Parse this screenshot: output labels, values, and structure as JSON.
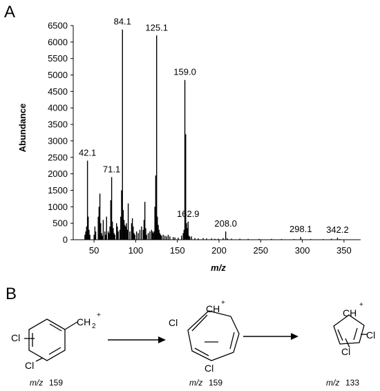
{
  "panels": {
    "a": "A",
    "b": "B"
  },
  "chart_data": {
    "type": "bar",
    "xlabel": "m/z",
    "ylabel": "Abundance",
    "xlim": [
      25,
      370
    ],
    "ylim": [
      0,
      6500
    ],
    "xticks": [
      50,
      100,
      150,
      200,
      250,
      300,
      350
    ],
    "yticks": [
      0,
      500,
      1000,
      1500,
      2000,
      2500,
      3000,
      3500,
      4000,
      4500,
      5000,
      5500,
      6000,
      6500
    ],
    "grid": false,
    "x": [
      39,
      40,
      41,
      42.1,
      43,
      44,
      45,
      50,
      51,
      52,
      55,
      56,
      57,
      58,
      59,
      60,
      61,
      63,
      64,
      65,
      67,
      68,
      69,
      70,
      71.1,
      72,
      73,
      74,
      75,
      77,
      78,
      79,
      81,
      82,
      83,
      84.1,
      85,
      86,
      87,
      88,
      89,
      90,
      91,
      93,
      95,
      96,
      97,
      98,
      99,
      101,
      103,
      105,
      107,
      109,
      110,
      111,
      112,
      113,
      115,
      117,
      119,
      120,
      121,
      122,
      123,
      124,
      125.1,
      126,
      127,
      128,
      129,
      130,
      131,
      133,
      135,
      137,
      139,
      141,
      145,
      147,
      151,
      155,
      157,
      158,
      159.0,
      160,
      161,
      162,
      162.9,
      164,
      165,
      167,
      171,
      175,
      181,
      185,
      191,
      195,
      199,
      205,
      208.0,
      210,
      215,
      225,
      235,
      248,
      263,
      275,
      290,
      298.1,
      310,
      325,
      335,
      342.2,
      345
    ],
    "values": [
      150,
      250,
      400,
      2400,
      700,
      300,
      150,
      150,
      400,
      250,
      700,
      1000,
      1400,
      500,
      200,
      120,
      600,
      250,
      150,
      700,
      250,
      200,
      400,
      1200,
      1900,
      550,
      350,
      200,
      150,
      500,
      400,
      250,
      300,
      700,
      1500,
      6380,
      900,
      600,
      450,
      400,
      500,
      300,
      1100,
      250,
      500,
      650,
      400,
      200,
      150,
      250,
      200,
      300,
      400,
      300,
      600,
      1150,
      350,
      150,
      200,
      250,
      300,
      250,
      200,
      250,
      1000,
      1950,
      6200,
      700,
      450,
      300,
      200,
      150,
      120,
      150,
      120,
      100,
      150,
      100,
      80,
      70,
      60,
      120,
      200,
      300,
      4850,
      3200,
      500,
      350,
      550,
      120,
      90,
      100,
      50,
      40,
      50,
      40,
      40,
      30,
      30,
      50,
      250,
      40,
      30,
      30,
      25,
      25,
      25,
      20,
      20,
      80,
      20,
      20,
      30,
      60,
      20
    ],
    "peak_labels": [
      {
        "x": 42.1,
        "text": "42.1"
      },
      {
        "x": 71.1,
        "text": "71.1"
      },
      {
        "x": 84.1,
        "text": "84.1"
      },
      {
        "x": 125.1,
        "text": "125.1"
      },
      {
        "x": 159.0,
        "text": "159.0"
      },
      {
        "x": 162.9,
        "text": "162.9"
      },
      {
        "x": 208.0,
        "text": "208.0"
      },
      {
        "x": 298.1,
        "text": "298.1"
      },
      {
        "x": 342.2,
        "text": "342.2"
      }
    ]
  },
  "scheme": {
    "struct1": {
      "cl_top": "Cl",
      "cl_bottom": "Cl",
      "group": "CH",
      "group_sub": "2",
      "charge": "+",
      "mz_prefix": "m/z",
      "mz_value": "159"
    },
    "struct2": {
      "cl_left": "Cl",
      "cl_bottom": "Cl",
      "group": "CH",
      "charge": "+",
      "mz_prefix": "m/z",
      "mz_value": "159"
    },
    "struct3": {
      "cl_right": "Cl",
      "cl_bottom": "Cl",
      "group": "CH",
      "charge": "+",
      "mz_prefix": "m/z",
      "mz_value": "133"
    }
  }
}
